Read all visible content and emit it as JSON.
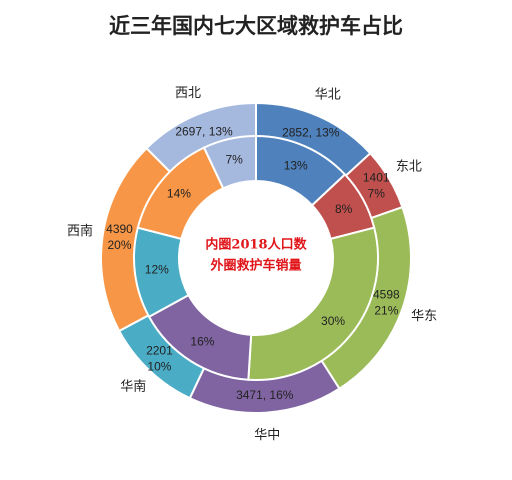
{
  "chart_data": {
    "type": "donut",
    "title": "近三年国内七大区域救护车占比",
    "center_text": [
      "内圈2018人口数",
      "外圈救护车销量"
    ],
    "categories": [
      "华北",
      "东北",
      "华东",
      "华中",
      "华南",
      "西南",
      "西北"
    ],
    "colors": [
      "#4f81bd",
      "#c0504d",
      "#9bbb59",
      "#8064a2",
      "#4bacc6",
      "#f79646",
      "#a5b8de"
    ],
    "inner_ring": {
      "name": "2018人口数",
      "values": [
        13,
        8,
        30,
        16,
        12,
        14,
        7
      ],
      "labels": [
        "13%",
        "8%",
        "30%",
        "16%",
        "12%",
        "14%",
        "7%"
      ]
    },
    "outer_ring": {
      "name": "救护车销量",
      "values": [
        2852,
        1401,
        4598,
        3471,
        2201,
        4390,
        2697
      ],
      "percents": [
        13,
        7,
        21,
        16,
        10,
        20,
        13
      ],
      "labels": [
        [
          "2852, 13%"
        ],
        [
          "1401",
          "7%"
        ],
        [
          "4598",
          "21%"
        ],
        [
          "3471, 16%"
        ],
        [
          "2201",
          "10%"
        ],
        [
          "4390",
          "20%"
        ],
        [
          "2697, 13%"
        ]
      ]
    }
  }
}
